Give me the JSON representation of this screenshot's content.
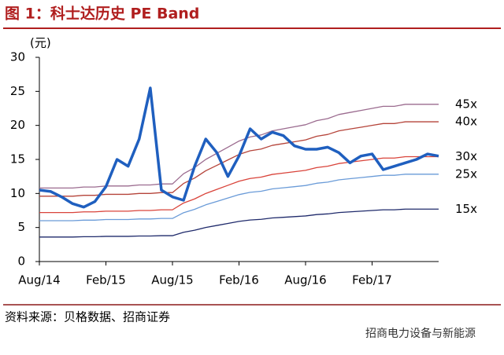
{
  "chart_data": {
    "type": "line",
    "title": "图 1：科士达历史 PE Band",
    "y_unit": "(元)",
    "source": "资料来源：贝格数据、招商证券",
    "watermark": "招商电力设备与新能源",
    "categories": [
      "Aug/14",
      null,
      null,
      null,
      null,
      null,
      "Feb/15",
      null,
      null,
      null,
      null,
      null,
      "Aug/15",
      null,
      null,
      null,
      null,
      null,
      "Feb/16",
      null,
      null,
      null,
      null,
      null,
      "Aug/16",
      null,
      null,
      null,
      null,
      null,
      "Feb/17",
      null,
      null,
      null,
      null,
      null,
      null
    ],
    "ylim": [
      0,
      30
    ],
    "yticks": [
      0,
      5,
      10,
      15,
      20,
      25,
      30
    ],
    "series": [
      {
        "color": "#1f5fbf",
        "values": [
          10.5,
          10.3,
          9.5,
          8.5,
          8.0,
          8.8,
          11.0,
          15.0,
          14.0,
          18.0,
          25.5,
          10.5,
          9.5,
          9.0,
          14.0,
          18.0,
          16.0,
          12.5,
          15.5,
          19.5,
          18.0,
          19.0,
          18.5,
          17.0,
          16.5,
          16.5,
          16.8,
          16.0,
          14.5,
          15.5,
          15.8,
          13.5,
          14.0,
          14.5,
          15.0,
          15.8,
          15.5
        ]
      },
      {
        "name": "45x",
        "color": "#9b6b8f",
        "values": [
          10.8,
          10.8,
          10.8,
          10.8,
          10.95,
          10.95,
          11.1,
          11.1,
          11.1,
          11.25,
          11.25,
          11.4,
          11.4,
          12.9,
          13.8,
          15.0,
          15.9,
          16.8,
          17.7,
          18.3,
          18.6,
          19.2,
          19.5,
          19.8,
          20.1,
          20.7,
          21.0,
          21.6,
          21.9,
          22.2,
          22.5,
          22.8,
          22.8,
          23.1,
          23.1,
          23.1,
          23.1
        ]
      },
      {
        "name": "40x",
        "color": "#b5443a",
        "values": [
          9.6,
          9.6,
          9.6,
          9.6,
          9.73,
          9.73,
          9.87,
          9.87,
          9.87,
          10.0,
          10.0,
          10.13,
          10.13,
          11.47,
          12.27,
          13.33,
          14.13,
          14.93,
          15.73,
          16.27,
          16.53,
          17.07,
          17.33,
          17.6,
          17.87,
          18.4,
          18.67,
          19.2,
          19.47,
          19.73,
          20.0,
          20.27,
          20.27,
          20.53,
          20.53,
          20.53,
          20.53
        ]
      },
      {
        "name": "30x",
        "color": "#d9433a",
        "values": [
          7.2,
          7.2,
          7.2,
          7.2,
          7.3,
          7.3,
          7.4,
          7.4,
          7.4,
          7.5,
          7.5,
          7.6,
          7.6,
          8.6,
          9.2,
          10.0,
          10.6,
          11.2,
          11.8,
          12.2,
          12.4,
          12.8,
          13.0,
          13.2,
          13.4,
          13.8,
          14.0,
          14.4,
          14.6,
          14.8,
          15.0,
          15.2,
          15.2,
          15.4,
          15.4,
          15.4,
          15.4
        ]
      },
      {
        "name": "25x",
        "color": "#6a9bd8",
        "values": [
          6.0,
          6.0,
          6.0,
          6.0,
          6.08,
          6.08,
          6.17,
          6.17,
          6.17,
          6.25,
          6.25,
          6.33,
          6.33,
          7.17,
          7.67,
          8.33,
          8.83,
          9.33,
          9.83,
          10.17,
          10.33,
          10.67,
          10.83,
          11.0,
          11.17,
          11.5,
          11.67,
          12.0,
          12.17,
          12.33,
          12.5,
          12.67,
          12.67,
          12.83,
          12.83,
          12.83,
          12.83
        ]
      },
      {
        "name": "15x",
        "color": "#1f2a6b",
        "values": [
          3.6,
          3.6,
          3.6,
          3.6,
          3.65,
          3.65,
          3.7,
          3.7,
          3.7,
          3.75,
          3.75,
          3.8,
          3.8,
          4.3,
          4.6,
          5.0,
          5.3,
          5.6,
          5.9,
          6.1,
          6.2,
          6.4,
          6.5,
          6.6,
          6.7,
          6.9,
          7.0,
          7.2,
          7.3,
          7.4,
          7.5,
          7.6,
          7.6,
          7.7,
          7.7,
          7.7,
          7.7
        ]
      }
    ]
  }
}
